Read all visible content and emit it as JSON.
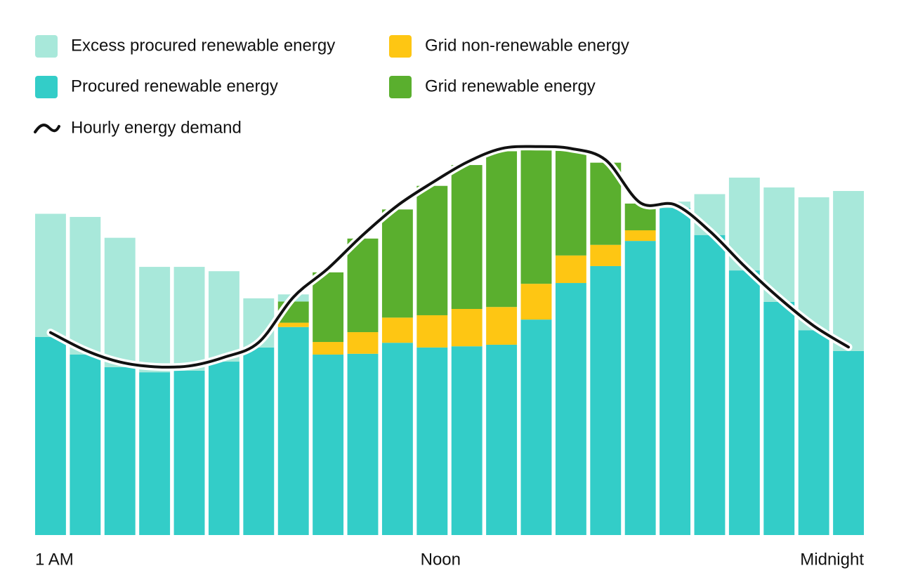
{
  "chart_data": {
    "type": "stacked-bar",
    "categories": [
      "1 AM",
      null,
      null,
      null,
      null,
      null,
      null,
      null,
      null,
      null,
      null,
      "Noon",
      null,
      null,
      null,
      null,
      null,
      null,
      null,
      null,
      null,
      null,
      null,
      "Midnight"
    ],
    "ylim": [
      0,
      100
    ],
    "series": [
      {
        "name": "Procured renewable energy",
        "color": "#33cdc8",
        "values": [
          50.4,
          45.9,
          42.7,
          41.4,
          41.8,
          44.1,
          47.7,
          52.9,
          45.9,
          46.1,
          48.9,
          47.7,
          48.0,
          48.4,
          54.8,
          64.1,
          68.4,
          74.8,
          83.2,
          76.3,
          67.3,
          59.3,
          52.1,
          46.8
        ]
      },
      {
        "name": "Grid non-renewable energy",
        "color": "#fec613",
        "values": [
          0,
          0,
          0,
          0,
          0,
          0,
          0,
          1.1,
          3.2,
          5.5,
          6.4,
          8.2,
          9.5,
          9.6,
          9.1,
          7.0,
          5.4,
          2.7,
          0,
          0,
          0,
          0,
          0,
          0
        ]
      },
      {
        "name": "Grid renewable energy",
        "color": "#5aaf2e",
        "values": [
          0,
          0,
          0,
          0,
          0,
          0,
          0,
          5.4,
          17.7,
          23.8,
          27.5,
          32.9,
          36.6,
          39.6,
          34.3,
          26.6,
          20.9,
          6.8,
          0,
          0,
          0,
          0,
          0,
          0
        ]
      },
      {
        "name": "Excess procured renewable energy",
        "color": "#a8e8da",
        "values": [
          31.3,
          35.0,
          32.9,
          26.8,
          26.4,
          23.0,
          12.5,
          1.8,
          0,
          0,
          0,
          0,
          0,
          0,
          0,
          0,
          0,
          0,
          1.6,
          10.4,
          23.6,
          29.1,
          33.8,
          40.7
        ]
      }
    ],
    "demand": {
      "name": "Hourly energy demand",
      "color": "#111111",
      "values": [
        51.5,
        47.0,
        44.0,
        42.8,
        43.0,
        45.2,
        49.0,
        60.5,
        67.8,
        76.3,
        83.8,
        89.6,
        94.8,
        98.3,
        98.8,
        98.3,
        95.4,
        84.5,
        84.0,
        77.3,
        68.4,
        60.3,
        53.2,
        47.8
      ]
    }
  }
}
